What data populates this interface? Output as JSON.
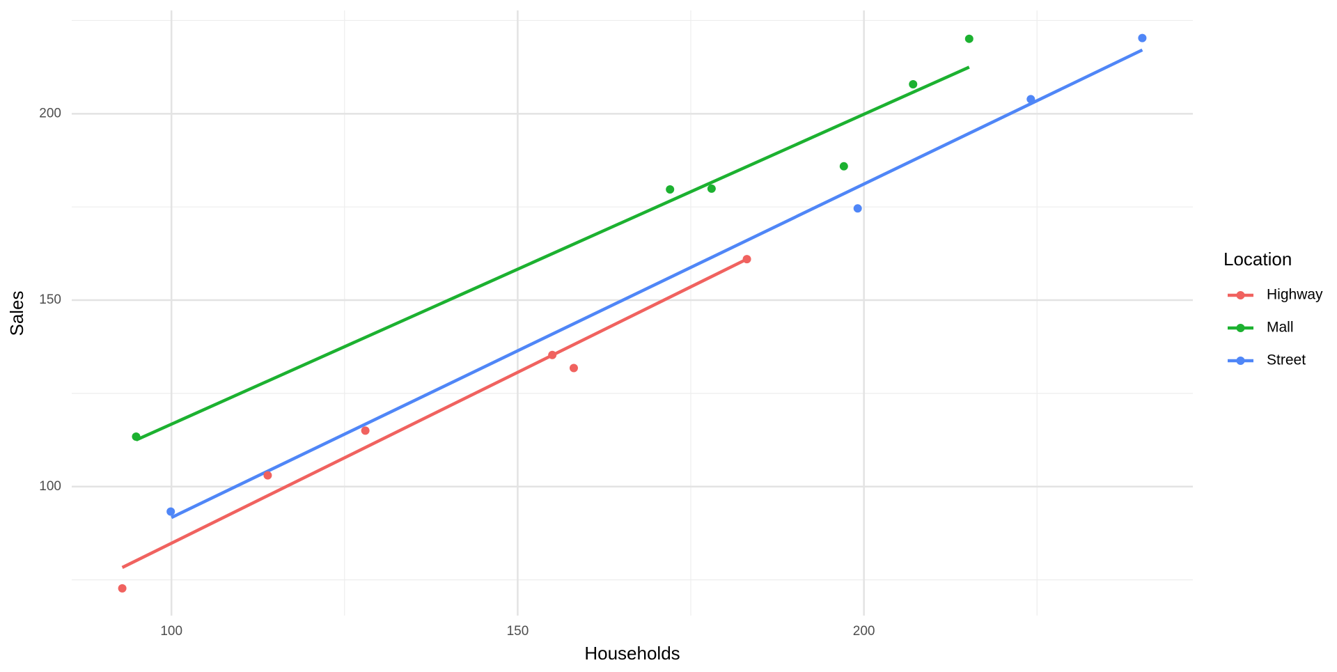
{
  "chart_data": {
    "type": "scatter",
    "xlabel": "Households",
    "ylabel": "Sales",
    "legend_title": "Location",
    "legend_position": "right",
    "grid": true,
    "xlim": [
      85.6,
      247.5
    ],
    "ylim": [
      65.4,
      227.7
    ],
    "xticks": [
      100,
      150,
      200
    ],
    "yticks": [
      100,
      150,
      200
    ],
    "xminorticks": [
      125,
      175,
      225
    ],
    "yminorticks": [
      75,
      125,
      175,
      225
    ],
    "series": [
      {
        "name": "Highway",
        "color": "#f0625f",
        "x": [
          92.9,
          113.9,
          128.0,
          155.0,
          158.1,
          183.1
        ],
        "values": [
          72.7,
          103.0,
          115.0,
          135.3,
          131.8,
          161.0
        ],
        "fit": {
          "x": [
            92.9,
            183.1
          ],
          "values": [
            78.3,
            161.0
          ]
        }
      },
      {
        "name": "Mall",
        "color": "#1cb130",
        "x": [
          94.9,
          172.0,
          178.0,
          197.1,
          207.1,
          215.2
        ],
        "values": [
          113.4,
          179.7,
          179.9,
          185.9,
          207.9,
          220.1
        ],
        "fit": {
          "x": [
            94.9,
            215.2
          ],
          "values": [
            112.5,
            212.5
          ]
        }
      },
      {
        "name": "Street",
        "color": "#4f86f7",
        "x": [
          99.9,
          199.1,
          224.1,
          240.2
        ],
        "values": [
          93.3,
          174.6,
          203.9,
          220.3
        ],
        "fit": {
          "x": [
            100.0,
            240.2
          ],
          "values": [
            91.7,
            217.1
          ]
        }
      }
    ]
  }
}
